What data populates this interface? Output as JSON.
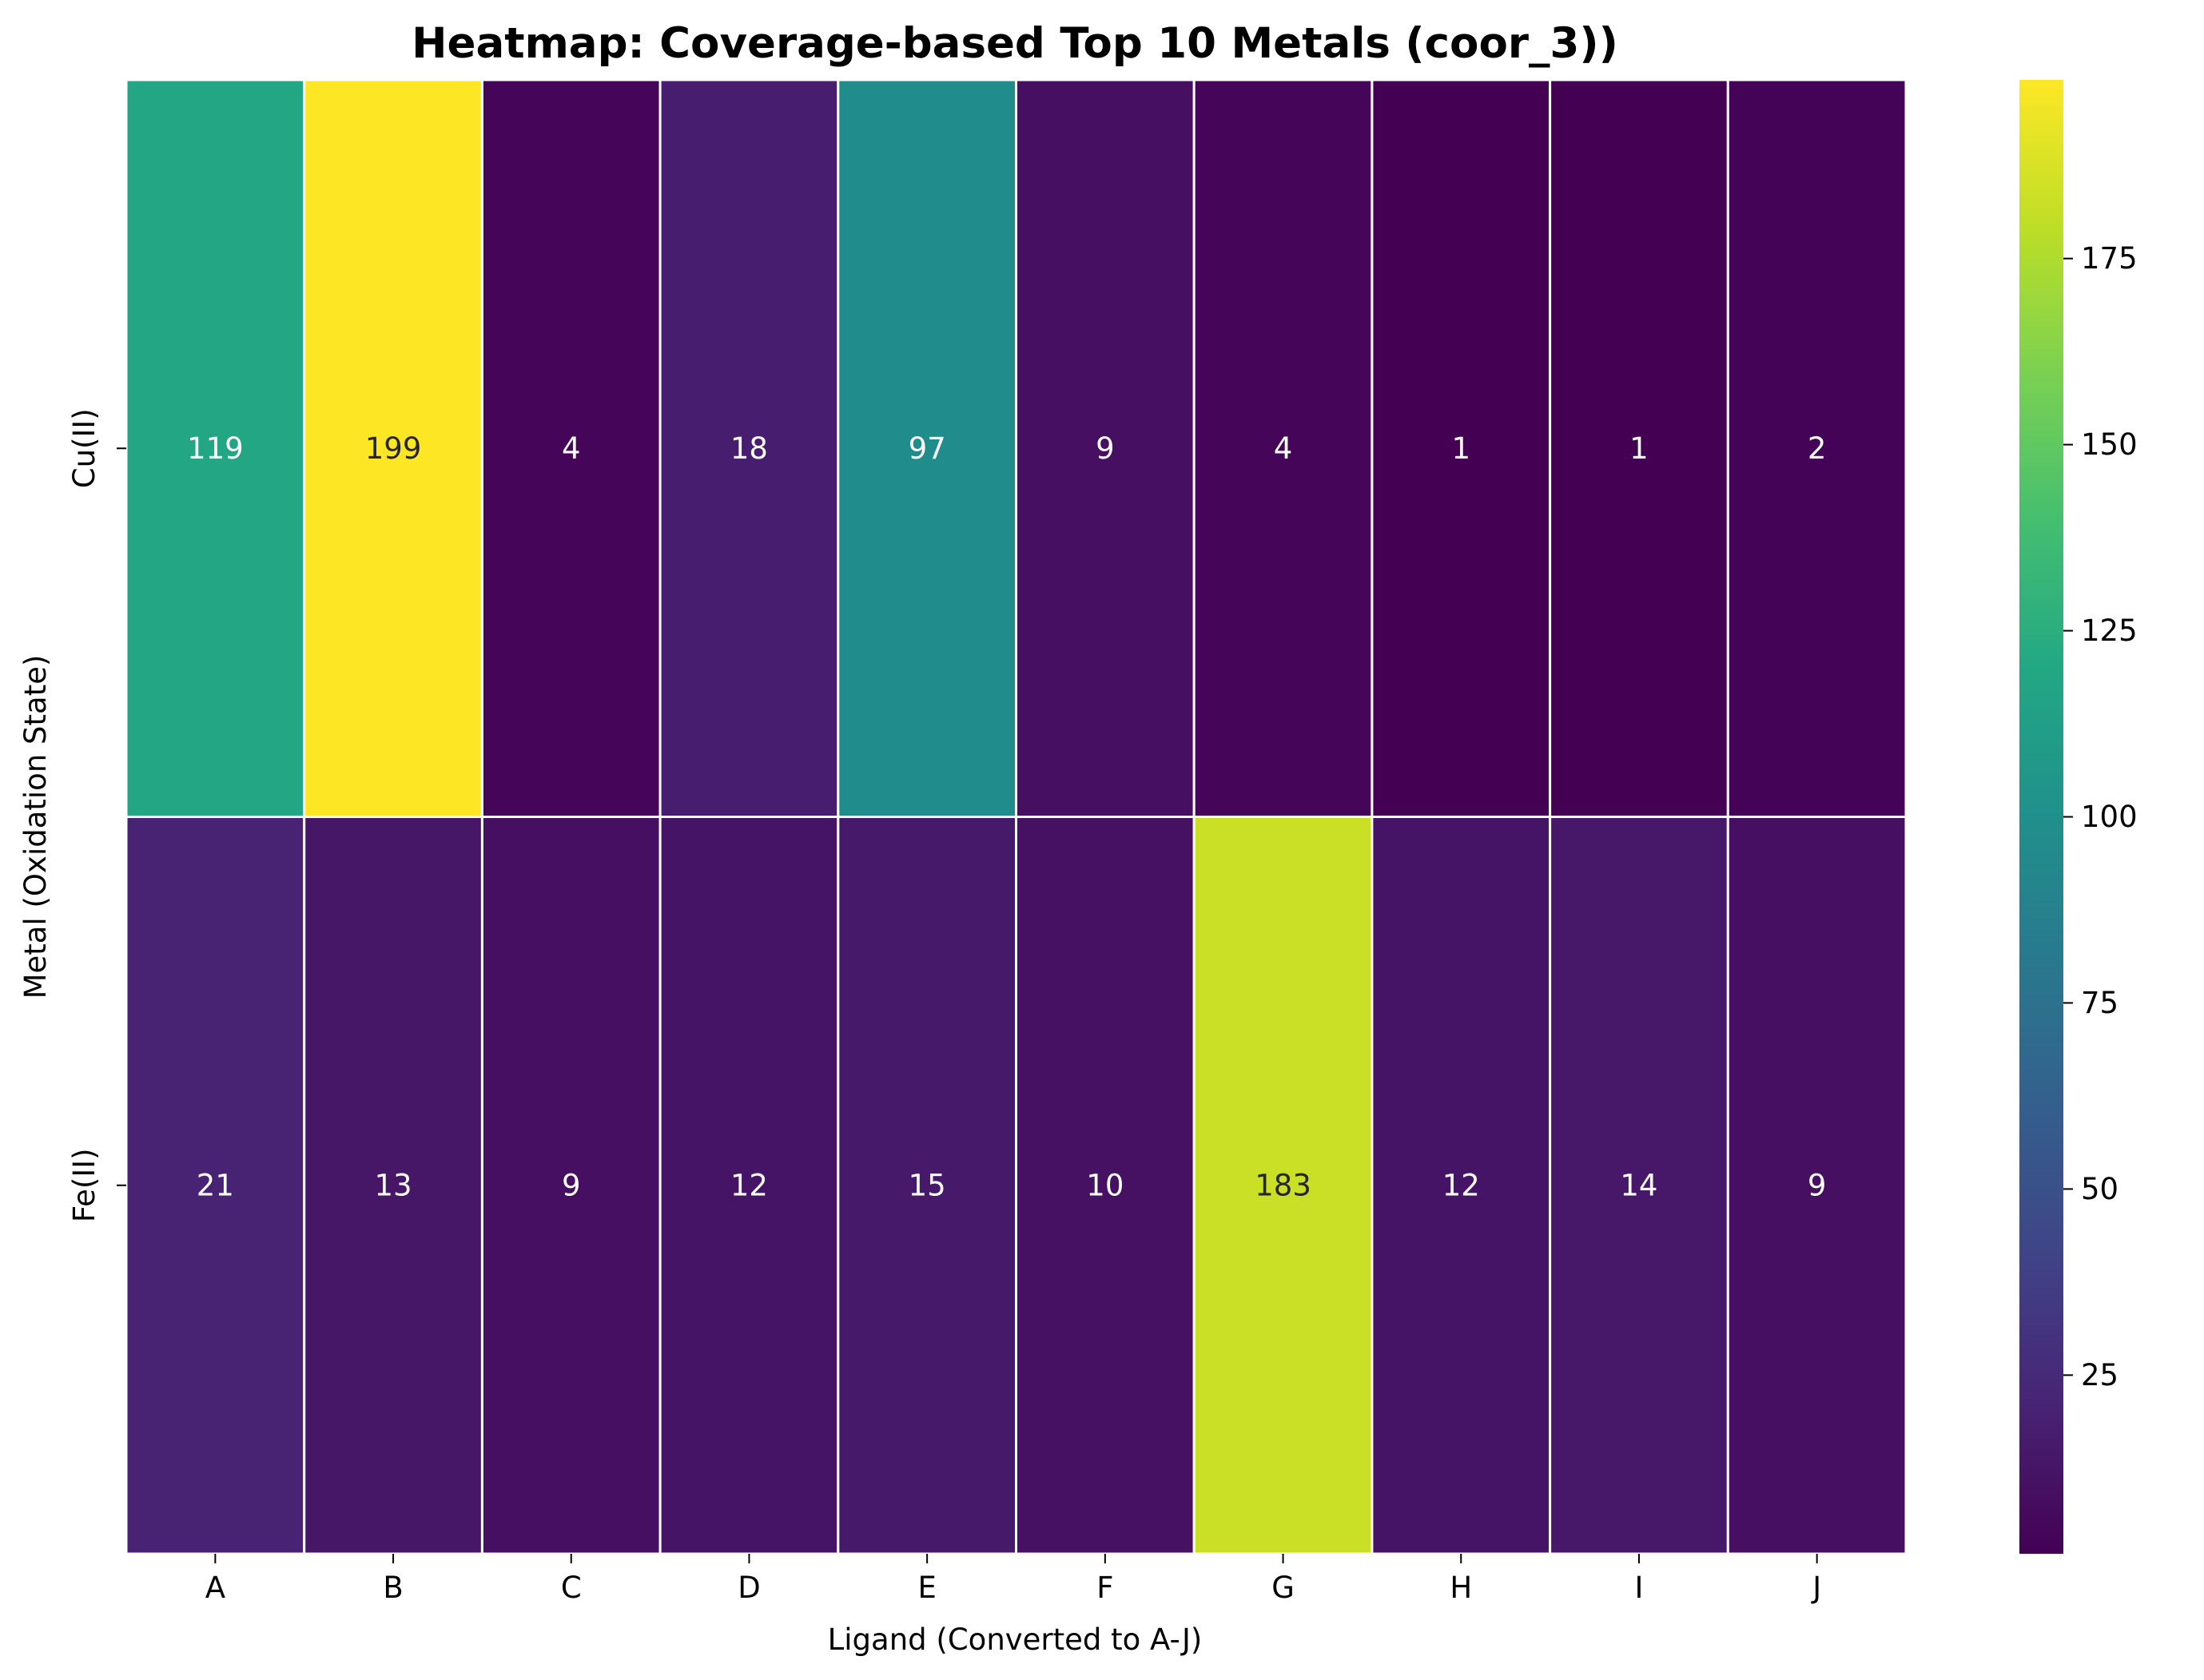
{
  "chart_data": {
    "type": "heatmap",
    "title": "Heatmap: Coverage-based Top 10 Metals (coor_3))",
    "xlabel": "Ligand (Converted to A-J)",
    "ylabel": "Metal (Oxidation State)",
    "x_categories": [
      "A",
      "B",
      "C",
      "D",
      "E",
      "F",
      "G",
      "H",
      "I",
      "J"
    ],
    "y_categories": [
      "Cu(II)",
      "Fe(II)"
    ],
    "values": [
      [
        119,
        199,
        4,
        18,
        97,
        9,
        4,
        1,
        1,
        2
      ],
      [
        21,
        13,
        9,
        12,
        15,
        10,
        183,
        12,
        14,
        9
      ]
    ],
    "colormap": "viridis",
    "colorbar": {
      "range": [
        1,
        199
      ],
      "ticks": [
        25,
        50,
        75,
        100,
        125,
        150,
        175
      ],
      "tick_labels": [
        "25",
        "50",
        "75",
        "100",
        "125",
        "150",
        "175"
      ]
    },
    "annotations": true,
    "cell_border_color": "#ffffff"
  }
}
